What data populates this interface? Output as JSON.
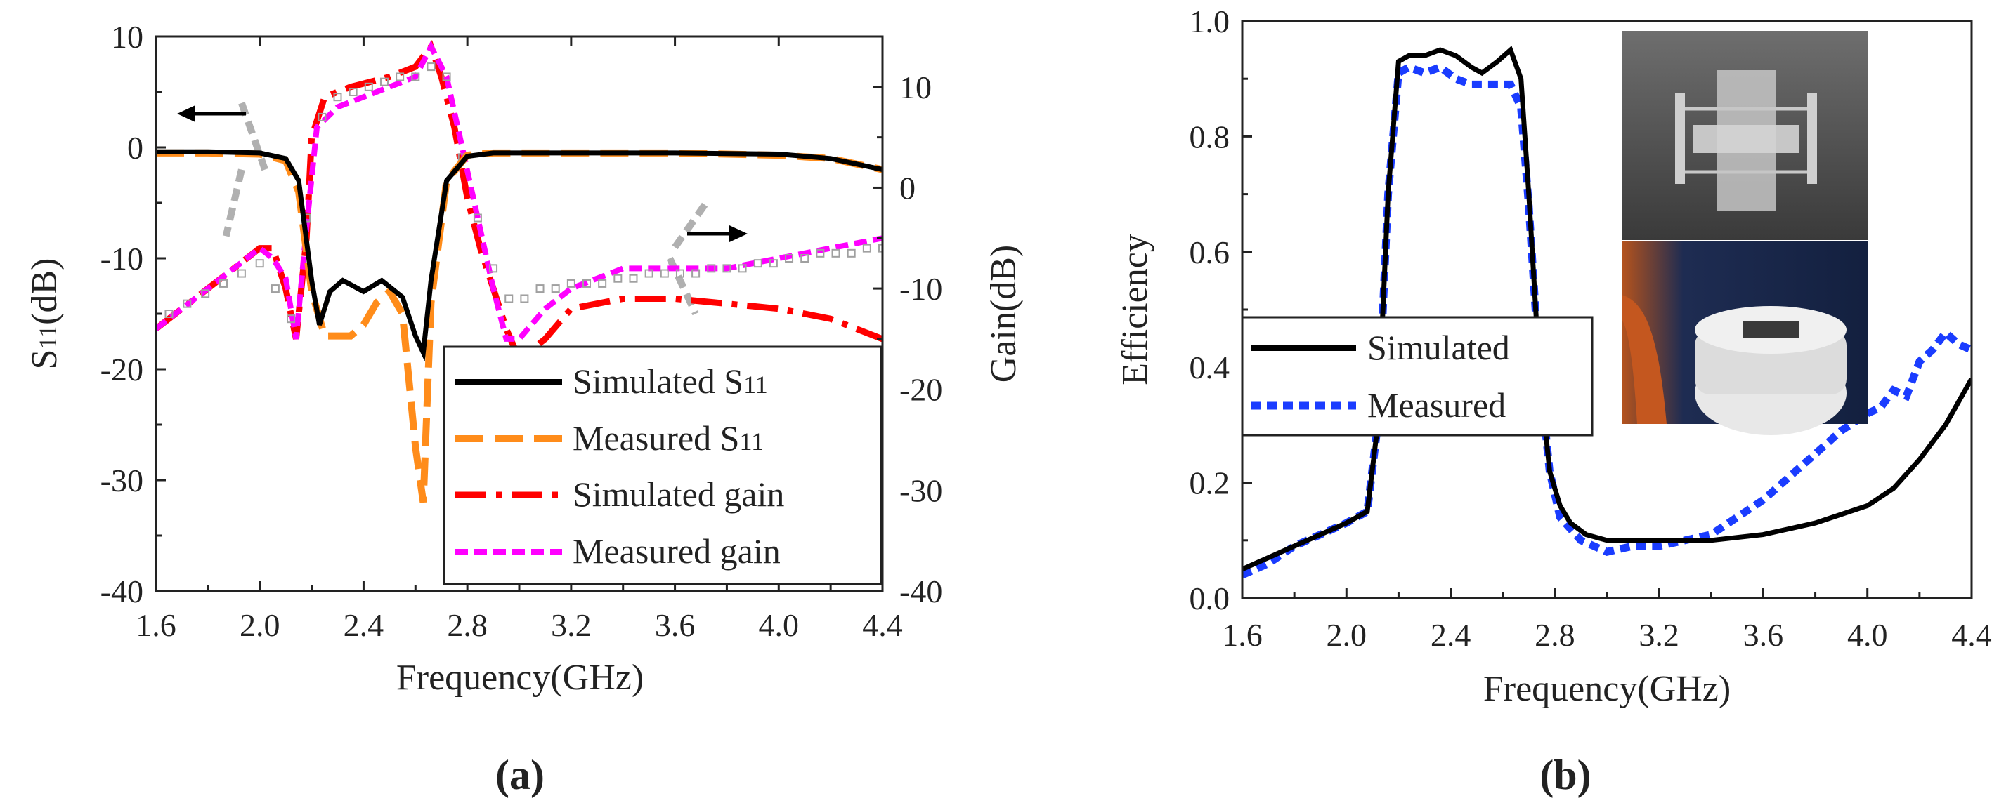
{
  "chart_data": [
    {
      "type": "line",
      "panel_label": "(a)",
      "xlabel": "Frequency(GHz)",
      "ylabel_left_main": "S",
      "ylabel_left_sub": "11",
      "ylabel_left_unit": "(dB)",
      "ylabel_right": "Gain(dB)",
      "xlim": [
        1.6,
        4.4
      ],
      "ylim_left": [
        -40,
        10
      ],
      "ylim_right": [
        -40,
        15
      ],
      "x_ticks": [
        "1.6",
        "2.0",
        "2.4",
        "2.8",
        "3.2",
        "3.6",
        "4.0",
        "4.4"
      ],
      "y_left_ticks": [
        "10",
        "0",
        "-10",
        "-20",
        "-30",
        "-40"
      ],
      "y_right_ticks": [
        "10",
        "0",
        "-10",
        "-20",
        "-30",
        "-40"
      ],
      "legend": [
        {
          "main": "Simulated S",
          "sub": "11"
        },
        {
          "main": "Measured S",
          "sub": "11"
        },
        {
          "main": "Simulated gain",
          "sub": ""
        },
        {
          "main": "Measured gain",
          "sub": ""
        }
      ],
      "colors": {
        "sim_s11": "#000000",
        "meas_s11": "#ff8c1a",
        "sim_gain": "#ff0000",
        "meas_gain": "#ff00ff",
        "arrow": "#b0b0b0",
        "marker": "#a0a0a0"
      },
      "series": [
        {
          "name": "Simulated S11",
          "axis": "left",
          "x": [
            1.6,
            1.8,
            2.0,
            2.1,
            2.15,
            2.2,
            2.23,
            2.27,
            2.32,
            2.4,
            2.47,
            2.55,
            2.6,
            2.63,
            2.66,
            2.72,
            2.8,
            2.9,
            3.2,
            3.6,
            4.0,
            4.2,
            4.4
          ],
          "y": [
            -0.4,
            -0.4,
            -0.5,
            -1.0,
            -3,
            -12,
            -16,
            -13,
            -12,
            -13,
            -12,
            -13.5,
            -17,
            -18.5,
            -12,
            -3,
            -0.8,
            -0.5,
            -0.5,
            -0.5,
            -0.6,
            -1.0,
            -2.0
          ]
        },
        {
          "name": "Measured S11",
          "axis": "left",
          "x": [
            1.6,
            1.8,
            2.0,
            2.1,
            2.15,
            2.2,
            2.25,
            2.3,
            2.35,
            2.4,
            2.45,
            2.5,
            2.55,
            2.6,
            2.63,
            2.66,
            2.72,
            2.8,
            2.9,
            3.2,
            3.6,
            4.0,
            4.2,
            4.4
          ],
          "y": [
            -0.5,
            -0.5,
            -0.6,
            -1.2,
            -4,
            -13,
            -17,
            -17,
            -17,
            -16,
            -14,
            -13,
            -15,
            -27,
            -32,
            -14,
            -3,
            -0.7,
            -0.5,
            -0.5,
            -0.5,
            -0.7,
            -1.0,
            -2.0
          ]
        },
        {
          "name": "Simulated gain",
          "axis": "right",
          "x": [
            1.6,
            1.7,
            1.8,
            1.9,
            2.0,
            2.05,
            2.1,
            2.14,
            2.18,
            2.2,
            2.25,
            2.35,
            2.5,
            2.6,
            2.66,
            2.7,
            2.75,
            2.8,
            2.85,
            2.9,
            2.95,
            3.0,
            3.1,
            3.2,
            3.4,
            3.6,
            3.8,
            4.0,
            4.2,
            4.4
          ],
          "y": [
            -14,
            -12,
            -10,
            -8,
            -6,
            -6,
            -10,
            -15,
            -5,
            5,
            9,
            10,
            11,
            12,
            14,
            11,
            6,
            -1,
            -6,
            -10,
            -14,
            -17,
            -15,
            -12,
            -11,
            -11,
            -11.5,
            -12,
            -13,
            -15
          ]
        },
        {
          "name": "Measured gain",
          "axis": "right",
          "x": [
            1.6,
            1.7,
            1.8,
            1.9,
            2.0,
            2.05,
            2.1,
            2.14,
            2.18,
            2.22,
            2.3,
            2.4,
            2.5,
            2.6,
            2.66,
            2.72,
            2.78,
            2.84,
            2.9,
            2.95,
            3.0,
            3.1,
            3.2,
            3.3,
            3.4,
            3.6,
            3.8,
            4.0,
            4.2,
            4.4
          ],
          "y": [
            -14,
            -12,
            -10,
            -8,
            -6,
            -7,
            -9,
            -15,
            -4,
            6,
            8,
            9,
            10,
            11,
            14,
            11,
            4,
            -3,
            -10,
            -15,
            -15,
            -12,
            -10,
            -9,
            -8,
            -8,
            -8,
            -7,
            -6,
            -5
          ]
        }
      ],
      "grey_markers": {
        "x": [
          1.65,
          1.72,
          1.79,
          1.86,
          1.93,
          2.0,
          2.06,
          2.12,
          2.18,
          2.24,
          2.3,
          2.36,
          2.42,
          2.48,
          2.54,
          2.6,
          2.66,
          2.72,
          2.78,
          2.84,
          2.9,
          2.96,
          3.02,
          3.08,
          3.14,
          3.2,
          3.26,
          3.32,
          3.38,
          3.44,
          3.5,
          3.56,
          3.62,
          3.68,
          3.74,
          3.8,
          3.86,
          3.92,
          3.98,
          4.04,
          4.1,
          4.16,
          4.22,
          4.28,
          4.34,
          4.4
        ],
        "y": [
          -12.5,
          -11.5,
          -10.5,
          -9.5,
          -8.5,
          -7.5,
          -10,
          -13,
          -3,
          7,
          9,
          9.5,
          10,
          10.5,
          11,
          11,
          12,
          11,
          3,
          -3,
          -8,
          -11,
          -11,
          -10,
          -10,
          -9.5,
          -9.5,
          -9.5,
          -9,
          -9,
          -8.5,
          -8.5,
          -8.5,
          -8.5,
          -8,
          -8,
          -8,
          -7.5,
          -7.5,
          -7,
          -7,
          -6.5,
          -6.5,
          -6.5,
          -6,
          -6
        ]
      }
    },
    {
      "type": "line",
      "panel_label": "(b)",
      "xlabel": "Frequency(GHz)",
      "ylabel": "Efficiency",
      "xlim": [
        1.6,
        4.4
      ],
      "ylim": [
        0.0,
        1.0
      ],
      "x_ticks": [
        "1.6",
        "2.0",
        "2.4",
        "2.8",
        "3.2",
        "3.6",
        "4.0",
        "4.4"
      ],
      "y_ticks": [
        "1.0",
        "0.8",
        "0.6",
        "0.4",
        "0.2",
        "0.0"
      ],
      "legend": [
        {
          "main": "Simulated"
        },
        {
          "main": "Measured"
        }
      ],
      "colors": {
        "simulated": "#000000",
        "measured": "#1a3cff"
      },
      "series": [
        {
          "name": "Simulated",
          "x": [
            1.6,
            1.7,
            1.8,
            1.9,
            2.0,
            2.08,
            2.12,
            2.16,
            2.2,
            2.24,
            2.3,
            2.36,
            2.42,
            2.48,
            2.52,
            2.58,
            2.63,
            2.67,
            2.7,
            2.74,
            2.78,
            2.82,
            2.86,
            2.92,
            3.0,
            3.2,
            3.4,
            3.6,
            3.8,
            4.0,
            4.1,
            4.2,
            4.3,
            4.4
          ],
          "y": [
            0.05,
            0.07,
            0.09,
            0.11,
            0.13,
            0.15,
            0.3,
            0.7,
            0.93,
            0.94,
            0.94,
            0.95,
            0.94,
            0.92,
            0.91,
            0.93,
            0.95,
            0.9,
            0.7,
            0.4,
            0.22,
            0.16,
            0.13,
            0.11,
            0.1,
            0.1,
            0.1,
            0.11,
            0.13,
            0.16,
            0.19,
            0.24,
            0.3,
            0.38
          ]
        },
        {
          "name": "Measured",
          "x": [
            1.6,
            1.7,
            1.8,
            1.9,
            2.0,
            2.08,
            2.12,
            2.16,
            2.2,
            2.24,
            2.3,
            2.36,
            2.42,
            2.48,
            2.52,
            2.58,
            2.63,
            2.67,
            2.7,
            2.74,
            2.78,
            2.82,
            2.86,
            2.9,
            2.95,
            3.0,
            3.1,
            3.2,
            3.3,
            3.4,
            3.5,
            3.6,
            3.7,
            3.8,
            3.9,
            4.0,
            4.05,
            4.1,
            4.15,
            4.2,
            4.25,
            4.3,
            4.35,
            4.4
          ],
          "y": [
            0.04,
            0.06,
            0.09,
            0.11,
            0.13,
            0.15,
            0.3,
            0.7,
            0.91,
            0.92,
            0.91,
            0.92,
            0.9,
            0.89,
            0.89,
            0.89,
            0.89,
            0.85,
            0.68,
            0.4,
            0.22,
            0.14,
            0.12,
            0.1,
            0.09,
            0.08,
            0.09,
            0.09,
            0.1,
            0.11,
            0.14,
            0.17,
            0.21,
            0.25,
            0.29,
            0.32,
            0.33,
            0.36,
            0.35,
            0.41,
            0.43,
            0.46,
            0.44,
            0.43
          ]
        }
      ]
    }
  ]
}
